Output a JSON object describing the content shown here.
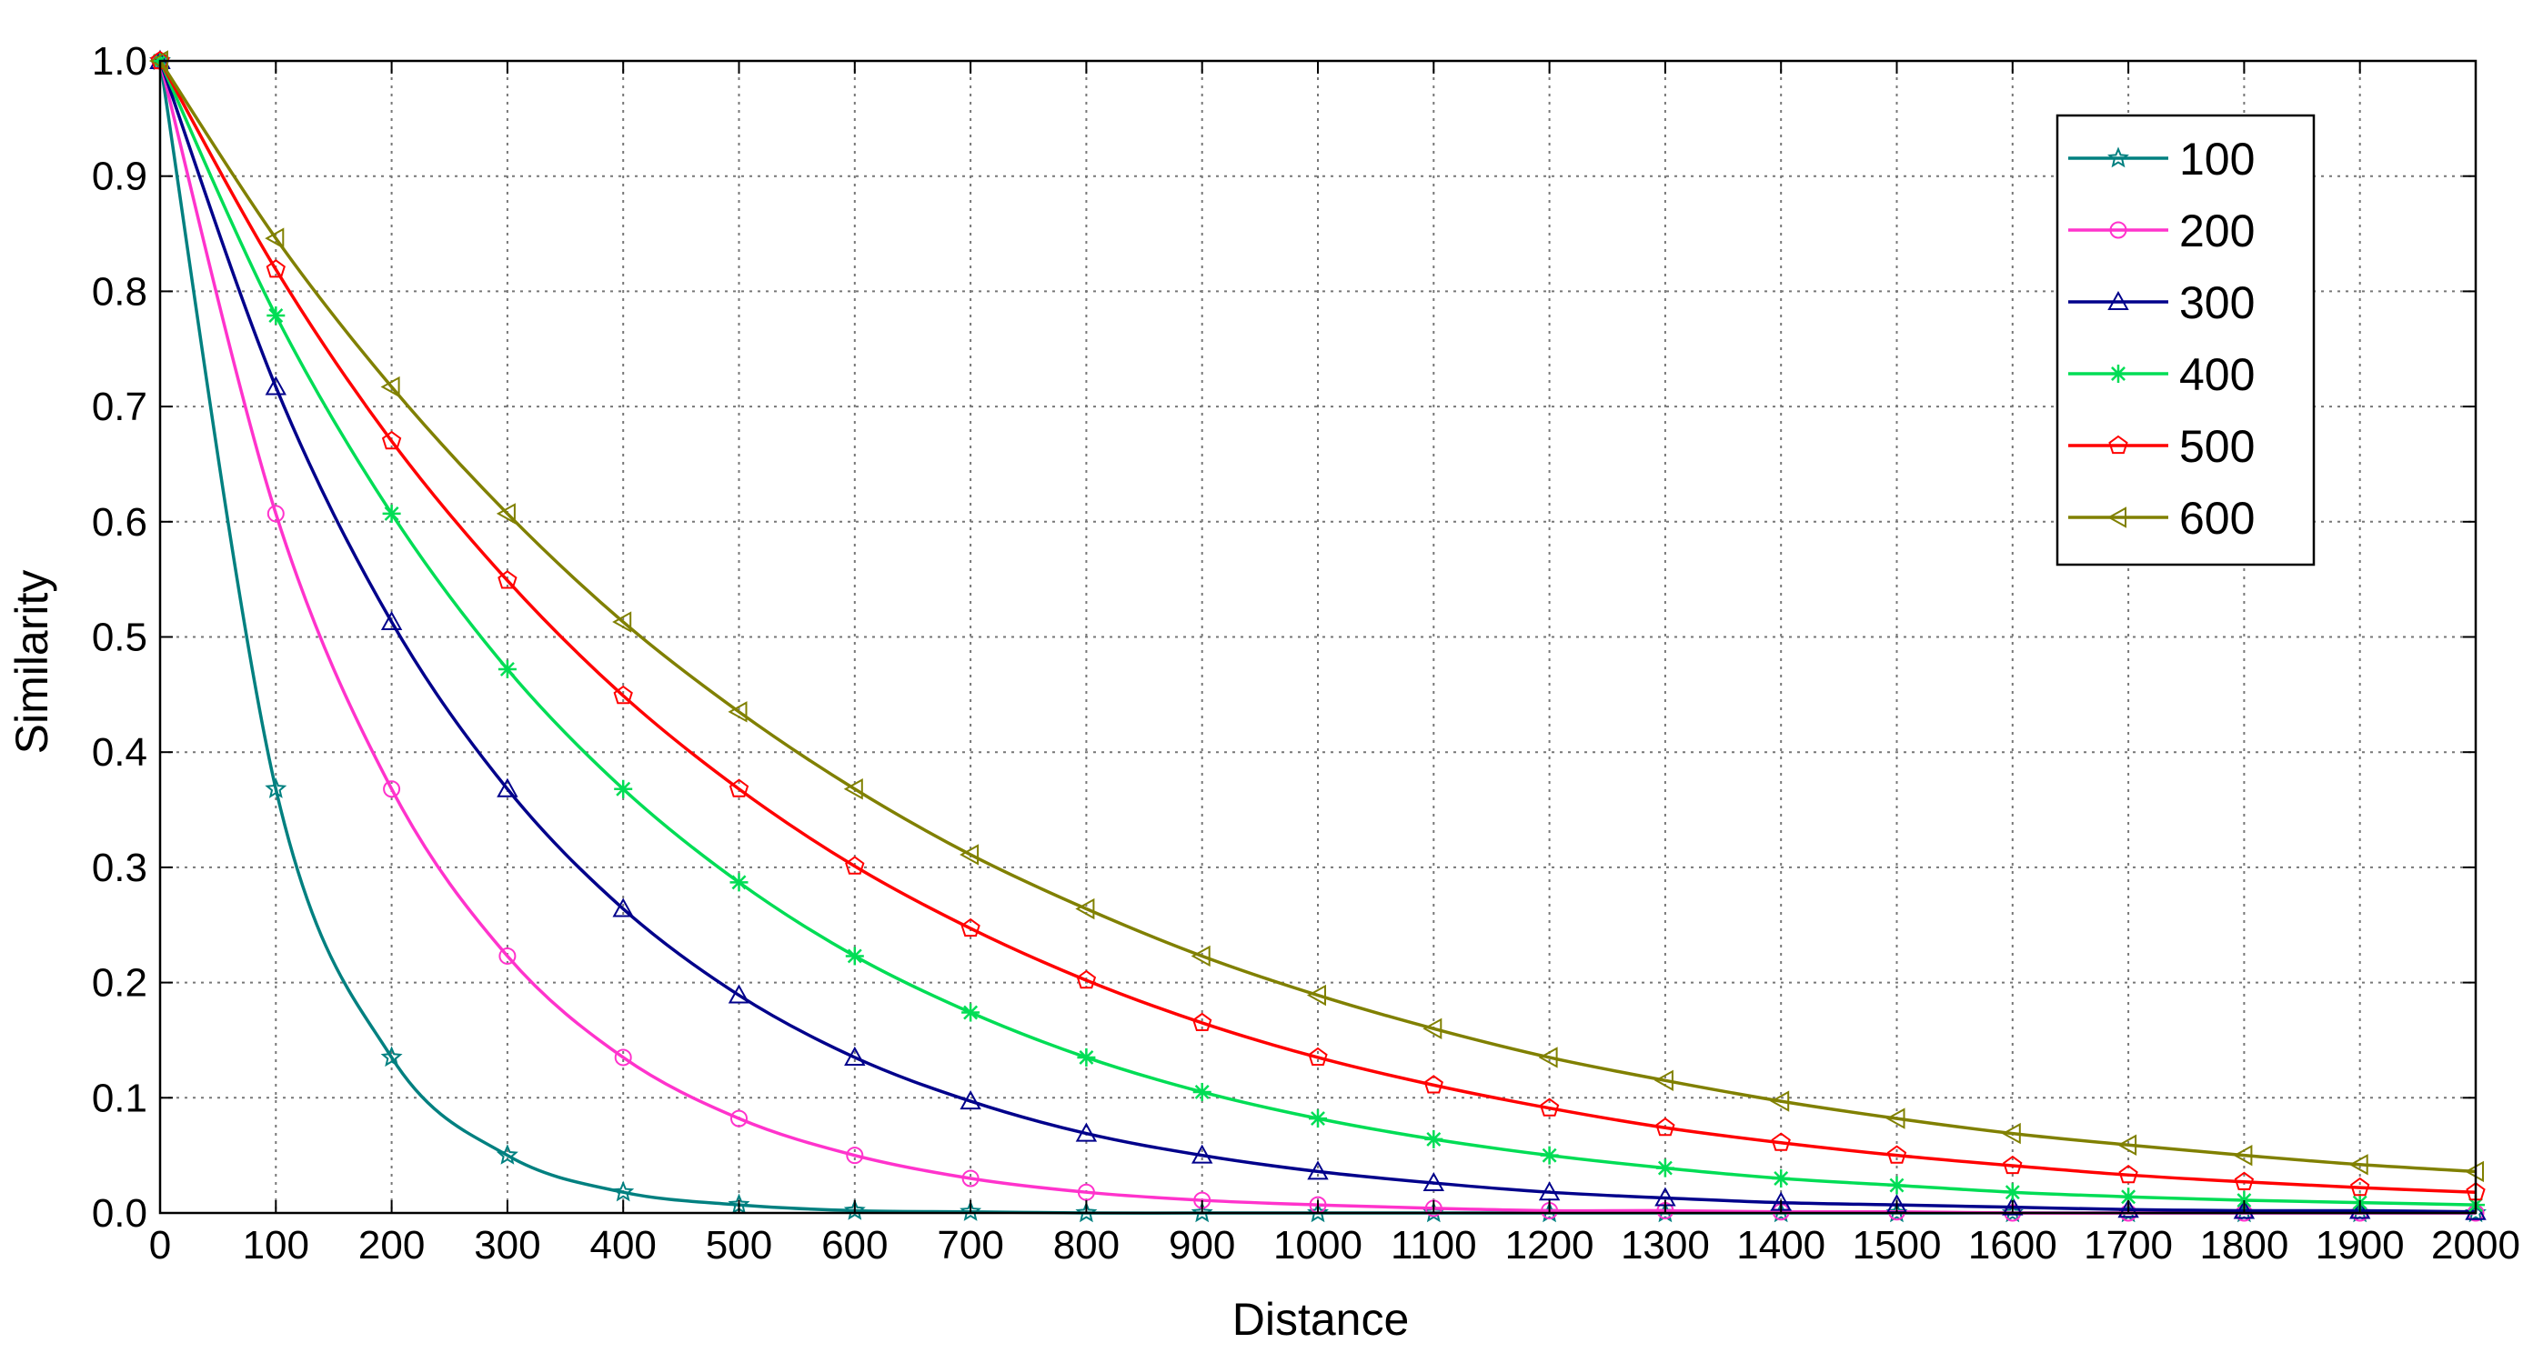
{
  "chart_data": {
    "type": "line",
    "title": "",
    "xlabel": "Distance",
    "ylabel": "Similarity",
    "xlim": [
      0,
      2000
    ],
    "ylim": [
      0,
      1
    ],
    "xticks": [
      0,
      100,
      200,
      300,
      400,
      500,
      600,
      700,
      800,
      900,
      1000,
      1100,
      1200,
      1300,
      1400,
      1500,
      1600,
      1700,
      1800,
      1900,
      2000
    ],
    "yticks": [
      0.0,
      0.1,
      0.2,
      0.3,
      0.4,
      0.5,
      0.6,
      0.7,
      0.8,
      0.9,
      1.0
    ],
    "ytick_labels": [
      "0.0",
      "0.1",
      "0.2",
      "0.3",
      "0.4",
      "0.5",
      "0.6",
      "0.7",
      "0.8",
      "0.9",
      "1.0"
    ],
    "grid": true,
    "legend_position": "top-right",
    "x": [
      0,
      100,
      200,
      300,
      400,
      500,
      600,
      700,
      800,
      900,
      1000,
      1100,
      1200,
      1300,
      1400,
      1500,
      1600,
      1700,
      1800,
      1900,
      2000
    ],
    "series": [
      {
        "name": "100",
        "color": "#008080",
        "marker": "star",
        "values": [
          1.0,
          0.368,
          0.135,
          0.05,
          0.018,
          0.007,
          0.002,
          0.001,
          0.0,
          0.0,
          0.0,
          0.0,
          0.0,
          0.0,
          0.0,
          0.0,
          0.0,
          0.0,
          0.0,
          0.0,
          0.0
        ]
      },
      {
        "name": "200",
        "color": "#ff33cc",
        "marker": "circle",
        "values": [
          1.0,
          0.607,
          0.368,
          0.223,
          0.135,
          0.082,
          0.05,
          0.03,
          0.018,
          0.011,
          0.007,
          0.004,
          0.002,
          0.002,
          0.001,
          0.001,
          0.0,
          0.0,
          0.0,
          0.0,
          0.0
        ]
      },
      {
        "name": "300",
        "color": "#00008b",
        "marker": "triangle-up",
        "values": [
          1.0,
          0.717,
          0.513,
          0.368,
          0.264,
          0.189,
          0.135,
          0.097,
          0.069,
          0.05,
          0.036,
          0.026,
          0.018,
          0.013,
          0.009,
          0.007,
          0.005,
          0.003,
          0.002,
          0.002,
          0.001
        ]
      },
      {
        "name": "400",
        "color": "#00dd55",
        "marker": "asterisk",
        "values": [
          1.0,
          0.779,
          0.607,
          0.472,
          0.368,
          0.287,
          0.223,
          0.174,
          0.135,
          0.105,
          0.082,
          0.064,
          0.05,
          0.039,
          0.03,
          0.024,
          0.018,
          0.014,
          0.011,
          0.009,
          0.007
        ]
      },
      {
        "name": "500",
        "color": "#ff0000",
        "marker": "pentagon",
        "values": [
          1.0,
          0.819,
          0.67,
          0.549,
          0.449,
          0.368,
          0.301,
          0.247,
          0.202,
          0.165,
          0.135,
          0.111,
          0.091,
          0.074,
          0.061,
          0.05,
          0.041,
          0.033,
          0.027,
          0.022,
          0.018
        ]
      },
      {
        "name": "600",
        "color": "#808000",
        "marker": "triangle-left",
        "values": [
          1.0,
          0.846,
          0.717,
          0.607,
          0.513,
          0.435,
          0.368,
          0.311,
          0.264,
          0.223,
          0.189,
          0.16,
          0.135,
          0.115,
          0.097,
          0.082,
          0.069,
          0.059,
          0.05,
          0.042,
          0.036
        ]
      }
    ]
  }
}
